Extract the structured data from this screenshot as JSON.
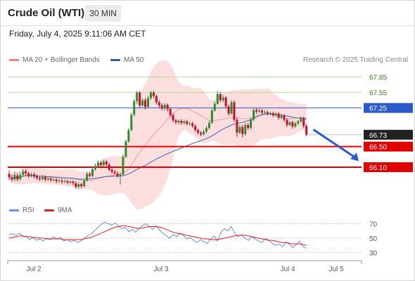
{
  "header": {
    "title": "Crude Oil (WTI)",
    "timeframe": "30 MIN",
    "datetime": "Friday, July 4, 2025 9:11:06 AM CET"
  },
  "legend": {
    "items": [
      {
        "label": "MA 20 + Bollinger Bands",
        "color": "#f08080"
      },
      {
        "label": "MA 50",
        "color": "#2f5aa8"
      }
    ],
    "credit": "Research © 2025 Trading Central"
  },
  "rsi_legend": {
    "items": [
      {
        "label": "RSI",
        "color": "#6b8ee8"
      },
      {
        "label": "9MA",
        "color": "#e02020"
      }
    ]
  },
  "colors": {
    "up": "#2e8b2e",
    "down": "#c0102b",
    "target_line": "#e00000",
    "resistance_line": "#b5dc9a",
    "pivot_line": "#2a5bc9",
    "arrow": "#2a5bc9"
  },
  "chart_data": [
    {
      "type": "candlestick",
      "ylim": [
        65.5,
        68.05
      ],
      "x_ticks": [
        "Jul 2",
        "Jul 3",
        "Jul 4",
        "Jul 5"
      ],
      "levels": [
        {
          "value": 67.85,
          "label": "67.85",
          "kind": "resistance"
        },
        {
          "value": 67.55,
          "label": "67.55",
          "kind": "resistance"
        },
        {
          "value": 67.25,
          "label": "67.25",
          "kind": "pivot"
        },
        {
          "value": 66.5,
          "label": "66.50",
          "kind": "support"
        },
        {
          "value": 66.1,
          "label": "66.10",
          "kind": "support"
        }
      ],
      "last_price": {
        "value": 66.73,
        "label": "66.73"
      },
      "forecast_arrow": {
        "from": 66.83,
        "to": 66.22
      },
      "candles": [
        [
          65.97,
          65.91,
          66.04,
          65.85
        ],
        [
          65.9,
          65.86,
          65.96,
          65.82
        ],
        [
          65.86,
          65.95,
          66.01,
          65.83
        ],
        [
          65.94,
          65.86,
          65.99,
          65.82
        ],
        [
          65.87,
          65.95,
          66.0,
          65.84
        ],
        [
          65.95,
          66.02,
          66.06,
          65.92
        ],
        [
          66.02,
          65.98,
          66.06,
          65.93
        ],
        [
          65.98,
          65.93,
          66.01,
          65.89
        ],
        [
          65.93,
          65.96,
          66.0,
          65.9
        ],
        [
          65.96,
          65.92,
          66.0,
          65.88
        ],
        [
          65.92,
          65.89,
          65.96,
          65.85
        ],
        [
          65.89,
          65.87,
          65.93,
          65.83
        ],
        [
          65.87,
          65.91,
          65.95,
          65.84
        ],
        [
          65.91,
          65.86,
          65.94,
          65.82
        ],
        [
          65.86,
          65.88,
          65.92,
          65.83
        ],
        [
          65.88,
          65.85,
          65.92,
          65.81
        ],
        [
          65.85,
          65.86,
          65.9,
          65.82
        ],
        [
          65.86,
          65.83,
          65.89,
          65.79
        ],
        [
          65.83,
          65.84,
          65.88,
          65.8
        ],
        [
          65.84,
          65.82,
          65.88,
          65.78
        ],
        [
          65.82,
          65.83,
          65.87,
          65.79
        ],
        [
          65.83,
          65.8,
          65.86,
          65.77
        ],
        [
          65.8,
          65.82,
          65.85,
          65.77
        ],
        [
          65.82,
          65.79,
          65.85,
          65.75
        ],
        [
          65.79,
          65.72,
          65.83,
          65.68
        ],
        [
          65.72,
          65.77,
          65.81,
          65.68
        ],
        [
          65.77,
          65.73,
          65.8,
          65.69
        ],
        [
          65.73,
          65.84,
          65.87,
          65.71
        ],
        [
          65.84,
          65.97,
          66.01,
          65.82
        ],
        [
          65.97,
          65.93,
          66.01,
          65.9
        ],
        [
          65.93,
          66.06,
          66.1,
          65.91
        ],
        [
          66.06,
          66.12,
          66.17,
          66.03
        ],
        [
          66.12,
          66.19,
          66.23,
          66.09
        ],
        [
          66.19,
          66.14,
          66.23,
          66.11
        ],
        [
          66.14,
          66.21,
          66.25,
          66.11
        ],
        [
          66.21,
          66.15,
          66.24,
          66.12
        ],
        [
          66.15,
          66.05,
          66.18,
          66.02
        ],
        [
          66.05,
          66.01,
          66.09,
          65.97
        ],
        [
          66.01,
          65.98,
          66.05,
          65.95
        ],
        [
          65.98,
          65.93,
          66.02,
          65.9
        ],
        [
          65.93,
          65.96,
          66.0,
          65.76
        ],
        [
          65.96,
          66.3,
          66.34,
          65.94
        ],
        [
          66.3,
          66.6,
          66.63,
          66.28
        ],
        [
          66.6,
          66.82,
          66.86,
          66.57
        ],
        [
          66.82,
          67.12,
          67.16,
          66.8
        ],
        [
          67.12,
          67.38,
          67.42,
          67.08
        ],
        [
          67.38,
          67.55,
          67.58,
          67.33
        ],
        [
          67.55,
          67.3,
          67.58,
          67.26
        ],
        [
          67.3,
          67.4,
          67.44,
          67.27
        ],
        [
          67.4,
          67.27,
          67.44,
          67.22
        ],
        [
          67.27,
          67.44,
          67.49,
          67.24
        ],
        [
          67.44,
          67.55,
          67.58,
          67.41
        ],
        [
          67.55,
          67.48,
          67.58,
          67.44
        ],
        [
          67.48,
          67.36,
          67.51,
          67.32
        ],
        [
          67.36,
          67.3,
          67.4,
          67.25
        ],
        [
          67.3,
          67.24,
          67.34,
          67.2
        ],
        [
          67.24,
          67.31,
          67.35,
          67.2
        ],
        [
          67.31,
          67.23,
          67.34,
          67.18
        ],
        [
          67.23,
          67.11,
          67.26,
          67.07
        ],
        [
          67.11,
          67.01,
          67.15,
          66.97
        ],
        [
          67.01,
          66.97,
          67.04,
          66.93
        ],
        [
          66.97,
          67.0,
          67.03,
          66.93
        ],
        [
          67.0,
          66.96,
          67.03,
          66.92
        ],
        [
          66.96,
          66.99,
          67.02,
          66.93
        ],
        [
          66.99,
          66.94,
          67.02,
          66.91
        ],
        [
          66.94,
          66.95,
          66.98,
          66.91
        ],
        [
          66.95,
          66.9,
          66.98,
          66.86
        ],
        [
          66.9,
          66.82,
          66.93,
          66.78
        ],
        [
          66.82,
          66.77,
          66.85,
          66.73
        ],
        [
          66.77,
          66.74,
          66.8,
          66.7
        ],
        [
          66.74,
          66.79,
          66.83,
          66.71
        ],
        [
          66.79,
          66.86,
          66.9,
          66.76
        ],
        [
          66.86,
          66.96,
          67.0,
          66.83
        ],
        [
          66.96,
          67.2,
          67.24,
          66.94
        ],
        [
          67.2,
          67.33,
          67.38,
          67.18
        ],
        [
          67.33,
          67.52,
          67.58,
          67.31
        ],
        [
          67.52,
          67.4,
          67.56,
          67.36
        ],
        [
          67.4,
          67.45,
          67.5,
          67.36
        ],
        [
          67.45,
          67.28,
          67.48,
          67.24
        ],
        [
          67.28,
          67.14,
          67.32,
          67.1
        ],
        [
          67.14,
          67.36,
          67.4,
          67.12
        ],
        [
          67.36,
          67.02,
          67.4,
          66.98
        ],
        [
          67.02,
          66.77,
          67.06,
          66.69
        ],
        [
          66.77,
          66.88,
          66.92,
          66.74
        ],
        [
          66.88,
          66.74,
          66.92,
          66.68
        ],
        [
          66.74,
          66.92,
          66.96,
          66.71
        ],
        [
          66.92,
          66.86,
          66.96,
          66.82
        ],
        [
          66.86,
          67.02,
          67.06,
          66.83
        ],
        [
          67.02,
          67.21,
          67.24,
          66.99
        ],
        [
          67.21,
          67.18,
          67.24,
          67.13
        ],
        [
          67.18,
          67.2,
          67.24,
          67.15
        ],
        [
          67.2,
          67.16,
          67.23,
          67.12
        ],
        [
          67.16,
          67.17,
          67.21,
          67.13
        ],
        [
          67.17,
          67.14,
          67.2,
          67.1
        ],
        [
          67.14,
          67.15,
          67.18,
          67.11
        ],
        [
          67.15,
          67.11,
          67.18,
          67.07
        ],
        [
          67.11,
          67.14,
          67.17,
          67.08
        ],
        [
          67.14,
          67.06,
          67.17,
          67.02
        ],
        [
          67.06,
          67.1,
          67.14,
          67.03
        ],
        [
          67.1,
          67.02,
          67.13,
          66.98
        ],
        [
          67.02,
          66.92,
          67.05,
          66.88
        ],
        [
          66.92,
          66.97,
          67.0,
          66.89
        ],
        [
          66.97,
          66.89,
          67.0,
          66.85
        ],
        [
          66.89,
          66.95,
          66.98,
          66.86
        ],
        [
          66.95,
          66.99,
          67.02,
          66.92
        ],
        [
          66.99,
          67.05,
          67.08,
          66.96
        ],
        [
          67.05,
          66.9,
          67.08,
          66.86
        ],
        [
          66.9,
          66.73,
          66.94,
          66.7
        ]
      ]
    },
    {
      "type": "line",
      "ylim": [
        22,
        78
      ],
      "y_ticks": [
        70,
        50,
        30
      ],
      "series": [
        {
          "name": "RSI",
          "values": [
            55,
            56,
            54,
            57,
            52,
            53,
            48,
            51,
            47,
            49,
            46,
            50,
            48,
            52,
            49,
            51,
            46,
            48,
            45,
            47,
            44,
            46,
            50,
            53,
            56,
            60,
            65,
            69,
            72,
            70,
            68,
            71,
            67,
            63,
            65,
            59,
            62,
            58,
            64,
            67,
            70,
            66,
            62,
            67,
            61,
            57,
            53,
            50,
            55,
            52,
            57,
            54,
            49,
            51,
            47,
            44,
            48,
            45,
            43,
            49,
            53,
            46,
            58,
            63,
            60,
            66,
            57,
            52,
            55,
            50,
            47,
            52,
            49,
            46,
            44,
            50,
            47,
            43,
            40,
            42,
            38,
            44,
            42,
            37,
            41,
            46,
            38,
            36
          ]
        },
        {
          "name": "9MA",
          "values": [
            50,
            51,
            52,
            53,
            53,
            52,
            52,
            51,
            51,
            50,
            50,
            49,
            49,
            49,
            49,
            49,
            48,
            48,
            48,
            48,
            48,
            48,
            49,
            50,
            51,
            53,
            55,
            57,
            59,
            61,
            63,
            65,
            66,
            67,
            67,
            66,
            65,
            64,
            63,
            64,
            65,
            66,
            66,
            66,
            65,
            64,
            62,
            60,
            58,
            57,
            56,
            55,
            54,
            53,
            52,
            51,
            50,
            49,
            49,
            48,
            48,
            48,
            49,
            50,
            51,
            52,
            53,
            54,
            54,
            54,
            53,
            52,
            51,
            50,
            49,
            48,
            47,
            47,
            46,
            45,
            44,
            44,
            43,
            42,
            42,
            42,
            41,
            40
          ]
        }
      ]
    }
  ]
}
